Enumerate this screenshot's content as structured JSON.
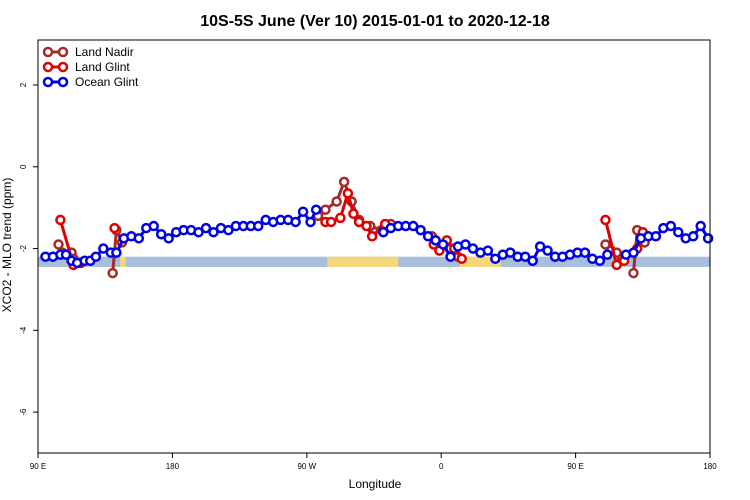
{
  "chart_data": {
    "type": "line",
    "title": "10S-5S June (Ver 10)   2015-01-01 to 2020-12-18",
    "xlabel": "Longitude",
    "ylabel": "XCO2 - MLO trend (ppm)",
    "xlim": [
      90,
      450
    ],
    "ylim": [
      -7,
      3.1
    ],
    "x_ticks": [
      {
        "value": 90,
        "label": "90 E"
      },
      {
        "value": 162,
        "label": "180"
      },
      {
        "value": 234,
        "label": "90 W"
      },
      {
        "value": 306,
        "label": "0"
      },
      {
        "value": 378,
        "label": "90 E"
      },
      {
        "value": 450,
        "label": "180"
      }
    ],
    "y_ticks": [
      {
        "value": 2,
        "label": "2"
      },
      {
        "value": 0,
        "label": "0"
      },
      {
        "value": -2,
        "label": "-2"
      },
      {
        "value": -4,
        "label": "-4"
      },
      {
        "value": -6,
        "label": "-6"
      }
    ],
    "legend_position": "top-left",
    "grid": false,
    "surface_band": {
      "ocean_color": "#a7bedc",
      "land_color": "#f5d77a",
      "y_range": [
        -2.45,
        -2.2
      ],
      "land_segments": [
        [
          134,
          137
        ],
        [
          245,
          283
        ],
        [
          316,
          338
        ],
        [
          399,
          404
        ]
      ]
    },
    "series": [
      {
        "name": "Land Nadir",
        "color": "#a52a2a",
        "segments": [
          [
            [
              101,
              -1.9
            ],
            [
              103,
              -2.1
            ],
            [
              108,
              -2.1
            ],
            [
              109,
              -2.25
            ]
          ],
          [
            [
              130,
              -2.6
            ],
            [
              132,
              -1.55
            ],
            [
              135,
              -1.85
            ]
          ],
          [
            [
              240,
              -1.2
            ],
            [
              244,
              -1.05
            ],
            [
              250,
              -0.85
            ],
            [
              254,
              -0.37
            ],
            [
              258,
              -0.85
            ],
            [
              262,
              -1.3
            ],
            [
              268,
              -1.45
            ],
            [
              274,
              -1.55
            ],
            [
              279,
              -1.4
            ]
          ],
          [
            [
              301,
              -1.7
            ],
            [
              304,
              -1.9
            ],
            [
              311,
              -2.0
            ],
            [
              315,
              -2.2
            ]
          ],
          [
            [
              394,
              -1.9
            ],
            [
              397,
              -2.05
            ],
            [
              400,
              -2.1
            ],
            [
              403,
              -2.25
            ]
          ],
          [
            [
              409,
              -2.6
            ],
            [
              411,
              -1.55
            ],
            [
              415,
              -1.85
            ]
          ]
        ]
      },
      {
        "name": "Land Glint",
        "color": "#e00000",
        "segments": [
          [
            [
              102,
              -1.3
            ],
            [
              109,
              -2.4
            ],
            [
              113,
              -2.35
            ]
          ],
          [
            [
              131,
              -1.5
            ]
          ],
          [
            [
              244,
              -1.35
            ],
            [
              247,
              -1.35
            ],
            [
              252,
              -1.25
            ],
            [
              256,
              -0.65
            ],
            [
              259,
              -1.15
            ],
            [
              262,
              -1.35
            ],
            [
              266,
              -1.45
            ],
            [
              269,
              -1.7
            ],
            [
              276,
              -1.4
            ]
          ],
          [
            [
              302,
              -1.9
            ],
            [
              305,
              -2.05
            ],
            [
              309,
              -1.8
            ],
            [
              313,
              -2.0
            ],
            [
              317,
              -2.25
            ]
          ],
          [
            [
              394,
              -1.3
            ],
            [
              400,
              -2.4
            ],
            [
              404,
              -2.3
            ]
          ],
          [
            [
              411,
              -2.0
            ],
            [
              414,
              -1.6
            ]
          ]
        ]
      },
      {
        "name": "Ocean Glint",
        "color": "#0000e6",
        "segments": [
          [
            [
              94,
              -2.2
            ],
            [
              98,
              -2.2
            ],
            [
              102,
              -2.15
            ],
            [
              105,
              -2.15
            ],
            [
              108,
              -2.3
            ],
            [
              111,
              -2.35
            ],
            [
              115,
              -2.3
            ],
            [
              118,
              -2.3
            ],
            [
              121,
              -2.2
            ],
            [
              125,
              -2.0
            ],
            [
              129,
              -2.1
            ],
            [
              132,
              -2.1
            ],
            [
              136,
              -1.75
            ],
            [
              140,
              -1.7
            ],
            [
              144,
              -1.75
            ],
            [
              148,
              -1.5
            ],
            [
              152,
              -1.45
            ],
            [
              156,
              -1.65
            ],
            [
              160,
              -1.75
            ],
            [
              164,
              -1.6
            ],
            [
              168,
              -1.55
            ],
            [
              172,
              -1.55
            ],
            [
              176,
              -1.6
            ],
            [
              180,
              -1.5
            ],
            [
              184,
              -1.6
            ],
            [
              188,
              -1.5
            ],
            [
              192,
              -1.55
            ],
            [
              196,
              -1.45
            ],
            [
              200,
              -1.45
            ],
            [
              204,
              -1.45
            ],
            [
              208,
              -1.45
            ],
            [
              212,
              -1.3
            ],
            [
              216,
              -1.35
            ],
            [
              220,
              -1.3
            ],
            [
              224,
              -1.3
            ],
            [
              228,
              -1.35
            ],
            [
              232,
              -1.1
            ],
            [
              236,
              -1.35
            ],
            [
              239,
              -1.05
            ]
          ],
          [
            [
              275,
              -1.6
            ],
            [
              279,
              -1.5
            ],
            [
              283,
              -1.45
            ],
            [
              287,
              -1.45
            ],
            [
              291,
              -1.45
            ],
            [
              295,
              -1.55
            ],
            [
              299,
              -1.7
            ],
            [
              303,
              -1.8
            ],
            [
              307,
              -1.9
            ],
            [
              311,
              -2.2
            ]
          ],
          [
            [
              315,
              -1.95
            ],
            [
              319,
              -1.9
            ],
            [
              323,
              -2.0
            ],
            [
              327,
              -2.1
            ],
            [
              331,
              -2.05
            ],
            [
              335,
              -2.25
            ],
            [
              339,
              -2.15
            ],
            [
              343,
              -2.1
            ],
            [
              347,
              -2.2
            ],
            [
              351,
              -2.2
            ],
            [
              355,
              -2.3
            ],
            [
              359,
              -1.95
            ],
            [
              363,
              -2.05
            ],
            [
              367,
              -2.2
            ],
            [
              371,
              -2.2
            ],
            [
              375,
              -2.15
            ],
            [
              379,
              -2.1
            ],
            [
              383,
              -2.1
            ],
            [
              387,
              -2.25
            ],
            [
              391,
              -2.3
            ],
            [
              395,
              -2.15
            ]
          ],
          [
            [
              405,
              -2.15
            ],
            [
              409,
              -2.1
            ],
            [
              413,
              -1.75
            ],
            [
              417,
              -1.7
            ],
            [
              421,
              -1.7
            ],
            [
              425,
              -1.5
            ],
            [
              429,
              -1.45
            ],
            [
              433,
              -1.6
            ],
            [
              437,
              -1.75
            ],
            [
              441,
              -1.7
            ],
            [
              445,
              -1.45
            ],
            [
              449,
              -1.75
            ]
          ]
        ]
      }
    ]
  }
}
